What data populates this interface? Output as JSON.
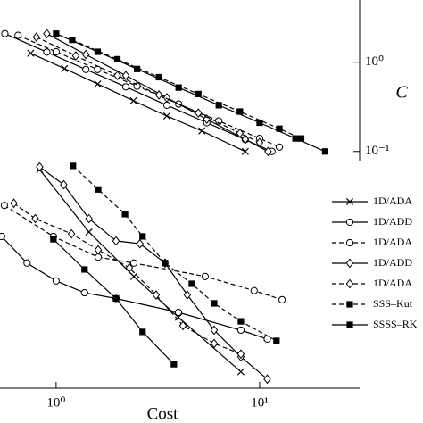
{
  "chart_data": [
    {
      "type": "line",
      "xlog": true,
      "ylog": true,
      "ylabel": "C",
      "yaxis_side": "right",
      "xlim": [
        0.53,
        31
      ],
      "ylim": [
        0.079,
        2.8
      ],
      "yticks": [
        {
          "value": 1,
          "label": "10⁰"
        },
        {
          "value": 0.1,
          "label": "10⁻¹"
        }
      ],
      "series": [
        {
          "color": "#000000",
          "marker": "x",
          "dashed": false,
          "x": [
            0.75,
            1.1,
            1.6,
            2.4,
            3.5,
            5.2,
            8.5
          ],
          "values": [
            1.26,
            0.85,
            0.57,
            0.37,
            0.25,
            0.17,
            0.1
          ]
        },
        {
          "color": "#000000",
          "marker": "o",
          "dashed": false,
          "x": [
            0.56,
            0.9,
            1.4,
            2.2,
            3.5,
            5.5,
            8.5,
            11.5
          ],
          "values": [
            2.09,
            1.3,
            0.83,
            0.53,
            0.33,
            0.21,
            0.136,
            0.1
          ]
        },
        {
          "color": "#000000",
          "marker": "o",
          "dashed": true,
          "x": [
            0.65,
            1.0,
            1.6,
            2.5,
            4,
            6.3,
            10,
            12.5
          ],
          "values": [
            2.0,
            1.31,
            0.83,
            0.54,
            0.34,
            0.22,
            0.14,
            0.112
          ]
        },
        {
          "color": "#000000",
          "marker": "d",
          "dashed": false,
          "x": [
            0.9,
            1.4,
            2.2,
            3.5,
            5.5,
            8.5,
            11
          ],
          "values": [
            2.09,
            1.22,
            0.71,
            0.4,
            0.23,
            0.137,
            0.1
          ]
        },
        {
          "color": "#000000",
          "marker": "d",
          "dashed": true,
          "x": [
            0.8,
            1.25,
            2,
            3.2,
            5,
            8,
            10
          ],
          "values": [
            1.91,
            1.18,
            0.71,
            0.43,
            0.27,
            0.16,
            0.126
          ]
        },
        {
          "color": "#000000",
          "marker": "s",
          "dashed": true,
          "x": [
            1.2,
            2,
            3.2,
            5,
            8,
            12.5,
            16
          ],
          "values": [
            1.78,
            1.08,
            0.68,
            0.44,
            0.28,
            0.18,
            0.14
          ]
        },
        {
          "color": "#000000",
          "marker": "s",
          "dashed": false,
          "x": [
            1,
            1.6,
            2.5,
            4,
            6.3,
            10,
            15,
            21
          ],
          "values": [
            2.09,
            1.31,
            0.84,
            0.52,
            0.33,
            0.21,
            0.14,
            0.1
          ]
        }
      ]
    },
    {
      "type": "line",
      "xlog": true,
      "ylog": true,
      "xlabel": "Cost",
      "legend": "right",
      "xlim": [
        0.53,
        31
      ],
      "ylim": [
        0.003,
        1
      ],
      "xticks": [
        {
          "value": 1,
          "label": "10⁰"
        },
        {
          "value": 10,
          "label": "10¹"
        }
      ],
      "series": [
        {
          "name": "1D/ADA",
          "color": "#000000",
          "marker": "x",
          "dashed": false,
          "x": [
            0.83,
            1.45,
            2.41,
            3.99,
            8.09
          ],
          "values": [
            0.89,
            0.175,
            0.055,
            0.019,
            0.0046
          ]
        },
        {
          "name": "1D/ADD",
          "color": "#000000",
          "marker": "o",
          "dashed": false,
          "x": [
            0.54,
            0.72,
            1.0,
            1.38,
            1.97,
            3.99,
            8.09,
            10.9
          ],
          "values": [
            0.156,
            0.078,
            0.049,
            0.036,
            0.031,
            0.0216,
            0.0136,
            0.0108
          ]
        },
        {
          "name": "1D/ADA",
          "color": "#000000",
          "marker": "o",
          "dashed": true,
          "x": [
            0.557,
            0.97,
            1.61,
            2.41,
            5.4,
            9.4,
            12.9
          ],
          "values": [
            0.35,
            0.156,
            0.091,
            0.078,
            0.055,
            0.038,
            0.03
          ]
        },
        {
          "name": "1D/ADD",
          "color": "#000000",
          "marker": "d",
          "dashed": false,
          "x": [
            0.83,
            1.09,
            1.45,
            1.97,
            2.58,
            3.43,
            4.41,
            5.98,
            8.09,
            10.9
          ],
          "values": [
            0.955,
            0.6,
            0.248,
            0.139,
            0.129,
            0.078,
            0.034,
            0.0136,
            0.0068,
            0.0038
          ]
        },
        {
          "name": "1D/ADA",
          "color": "#000000",
          "marker": "d",
          "dashed": true,
          "x": [
            0.62,
            0.79,
            1.19,
            1.61,
            2.29,
            3.1,
            4.2,
            5.98,
            8.09
          ],
          "values": [
            0.37,
            0.248,
            0.167,
            0.11,
            0.069,
            0.034,
            0.0153,
            0.0096,
            0.0073
          ]
        },
        {
          "name": "SSS–Kut",
          "color": "#000000",
          "marker": "s",
          "dashed": true,
          "x": [
            1.21,
            1.61,
            2.18,
            2.66,
            3.43,
            4.64,
            5.98,
            8.09,
            12.1
          ],
          "values": [
            0.98,
            0.53,
            0.279,
            0.156,
            0.078,
            0.0455,
            0.0273,
            0.0171,
            0.0103
          ]
        },
        {
          "name": "SSSS–RK",
          "color": "#000000",
          "marker": "s",
          "dashed": false,
          "x": [
            0.97,
            1.38,
            1.97,
            2.66,
            3.79
          ],
          "values": [
            0.145,
            0.066,
            0.031,
            0.013,
            0.0056
          ]
        }
      ]
    }
  ]
}
